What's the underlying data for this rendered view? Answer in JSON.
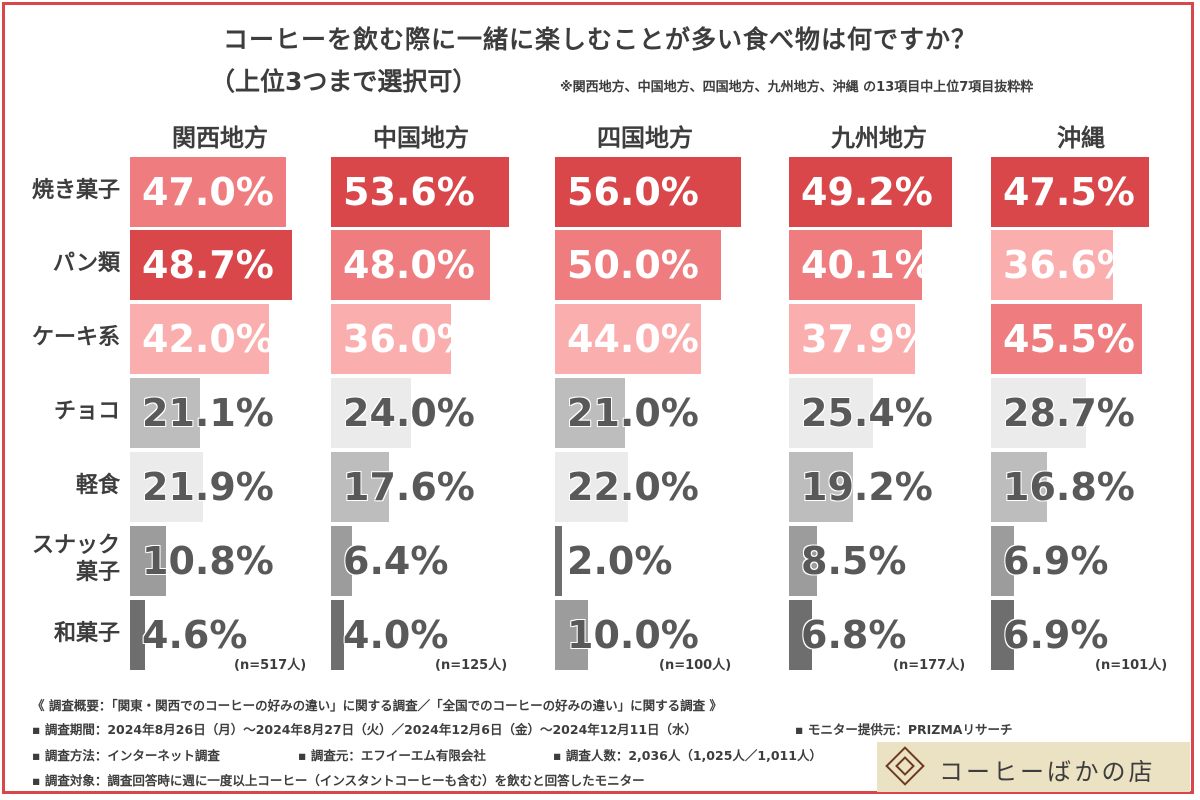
{
  "title": "コーヒーを飲む際に一緒に楽しむことが多い食べ物は何ですか？",
  "subtitle": "（上位3つまで選択可）",
  "note": "※関西地方、中国地方、四国地方、九州地方、沖縄 の13項目中上位7項目抜粋粋",
  "chart_data": {
    "type": "bar",
    "orientation": "horizontal",
    "unit": "%",
    "categories": [
      "焼き菓子",
      "パン類",
      "ケーキ系",
      "チョコ",
      "軽食",
      "スナック菓子",
      "和菓子"
    ],
    "category_lines": [
      [
        "焼き菓子"
      ],
      [
        "パン類"
      ],
      [
        "ケーキ系"
      ],
      [
        "チョコ"
      ],
      [
        "軽食"
      ],
      [
        "スナック",
        "菓子"
      ],
      [
        "和菓子"
      ]
    ],
    "series": [
      {
        "name": "関西地方",
        "n_label": "(n=517人)",
        "values": [
          47.0,
          48.7,
          42.0,
          21.1,
          21.9,
          10.8,
          4.6
        ]
      },
      {
        "name": "中国地方",
        "n_label": "(n=125人)",
        "values": [
          53.6,
          48.0,
          36.0,
          24.0,
          17.6,
          6.4,
          4.0
        ]
      },
      {
        "name": "四国地方",
        "n_label": "(n=100人)",
        "values": [
          56.0,
          50.0,
          44.0,
          21.0,
          22.0,
          2.0,
          10.0
        ]
      },
      {
        "name": "九州地方",
        "n_label": "(n=177人)",
        "values": [
          49.2,
          40.1,
          37.9,
          25.4,
          19.2,
          8.5,
          6.8
        ]
      },
      {
        "name": "沖縄",
        "n_label": "(n=101人)",
        "values": [
          47.5,
          36.6,
          45.5,
          28.7,
          16.8,
          6.9,
          6.9
        ]
      }
    ],
    "rank_colors": [
      "#d9474a",
      "#ef7d7f",
      "#fbaeae",
      "#ebebeb",
      "#bdbdbd",
      "#9c9c9c",
      "#6e6e6e"
    ],
    "value_text_colors": {
      "top3": "#ffffff",
      "rest": "#595959"
    }
  },
  "footer": {
    "line1": "《 調査概要：「関東・関西でのコーヒーの好みの違い」に関する調査／「全国でのコーヒーの好みの違い」に関する調査 》",
    "line2a": "▪ 調査期間：2024年8月26日（月）～2024年8月27日（火）／2024年12月6日（金）～2024年12月11日（水）",
    "line2b": "▪ モニター提供元：PRIZMAリサーチ",
    "line3a": "▪ 調査方法：インターネット調査",
    "line3b": "▪ 調査元：エフイーエム有限会社",
    "line3c": "▪ 調査人数：2,036人（1,025人／1,011人）",
    "line4": "▪ 調査対象：調査回答時に週に一度以上コーヒー（インスタントコーヒーも含む）を飲むと回答したモニター"
  },
  "logo": {
    "text": "コーヒーばかの店",
    "icon": "coffee-shop-diamond-icon"
  }
}
